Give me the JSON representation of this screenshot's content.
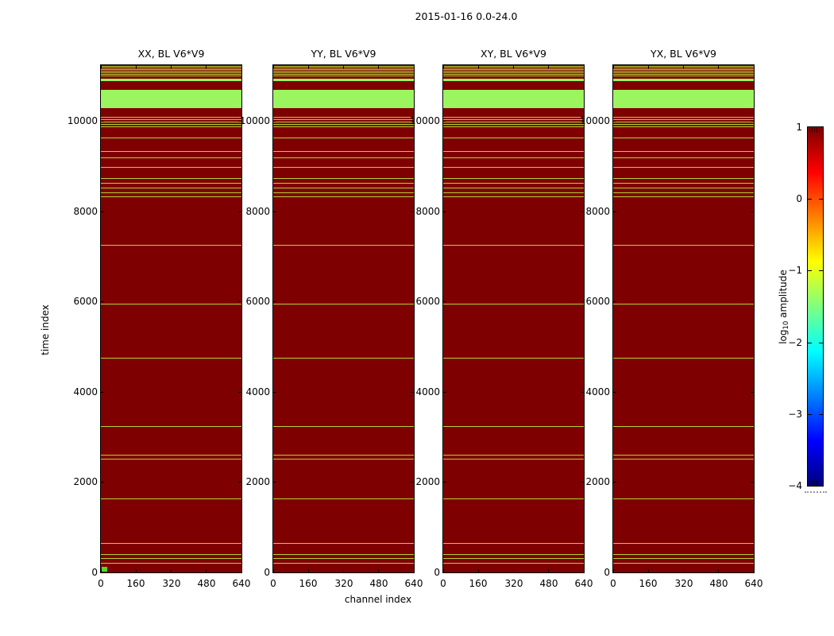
{
  "figure_title": "2015-01-16 0.0-24.0",
  "chart_data": {
    "type": "heatmap",
    "title": "2015-01-16 0.0-24.0",
    "xlabel": "channel index",
    "ylabel": "time index",
    "panels": [
      {
        "title": "XX, BL V6*V9"
      },
      {
        "title": "YY, BL V6*V9"
      },
      {
        "title": "XY, BL V6*V9"
      },
      {
        "title": "YX, BL V6*V9"
      }
    ],
    "x_range": [
      0,
      640
    ],
    "y_range": [
      0,
      11232
    ],
    "x_ticks": [
      0,
      160,
      320,
      480,
      640
    ],
    "x_tick_labels": [
      "0",
      "160",
      "320",
      "480",
      "640"
    ],
    "y_ticks": [
      0,
      2000,
      4000,
      6000,
      8000,
      10000
    ],
    "y_tick_labels": [
      "0",
      "2000",
      "4000",
      "6000",
      "8000",
      "10000"
    ],
    "colors": {
      "background": "#7f0000",
      "stripe": "#b2d23a",
      "band": "#9bf55f",
      "origin_marker": "#52d92e"
    },
    "stripes": [
      [
        11193,
        11211,
        "thin"
      ],
      [
        11158,
        11176,
        "thin"
      ],
      [
        11123,
        11141,
        "thin"
      ],
      [
        11087,
        11105,
        "thin"
      ],
      [
        11052,
        11070,
        "thin"
      ],
      [
        11017,
        11035,
        "thin"
      ],
      [
        10981,
        10999,
        "thin"
      ],
      [
        10877,
        10930,
        "band"
      ],
      [
        10278,
        10683,
        "band"
      ],
      [
        10076,
        10094,
        "thin"
      ],
      [
        10023,
        10041,
        "thin"
      ],
      [
        9970,
        9988,
        "thin"
      ],
      [
        9917,
        9935,
        "thin"
      ],
      [
        9865,
        9883,
        "thin"
      ],
      [
        9618,
        9636,
        "thin"
      ],
      [
        9319,
        9337,
        "thin"
      ],
      [
        9178,
        9196,
        "thin"
      ],
      [
        8967,
        8985,
        "thin"
      ],
      [
        8721,
        8739,
        "thin"
      ],
      [
        8615,
        8633,
        "thin"
      ],
      [
        8509,
        8527,
        "thin"
      ],
      [
        8404,
        8422,
        "thin"
      ],
      [
        8316,
        8334,
        "thin"
      ],
      [
        7242,
        7260,
        "thin"
      ],
      [
        5940,
        5958,
        "thin"
      ],
      [
        4743,
        4761,
        "thin"
      ],
      [
        3229,
        3247,
        "thin"
      ],
      [
        2587,
        2605,
        "thin"
      ],
      [
        2499,
        2517,
        "thin"
      ],
      [
        1628,
        1646,
        "thin"
      ],
      [
        642,
        660,
        "thin"
      ],
      [
        396,
        414,
        "thin"
      ],
      [
        308,
        326,
        "thin"
      ],
      [
        202,
        220,
        "thin"
      ]
    ],
    "origin_marker": {
      "panel": 0,
      "x0": 4,
      "x1": 28,
      "t0": 18,
      "t1": 120
    },
    "colorbar": {
      "label_prefix": "log",
      "label_sub": "10",
      "label_suffix": " amplitude",
      "range": [
        -4,
        1
      ],
      "ticks": [
        1,
        0,
        -1,
        -2,
        -3,
        -4
      ],
      "tick_labels": [
        "1",
        "0",
        "−1",
        "−2",
        "−3",
        "−4"
      ],
      "colormap": "jet",
      "stops": [
        [
          "#7f0000",
          0
        ],
        [
          "#ff0000",
          12.5
        ],
        [
          "#ffff00",
          37.5
        ],
        [
          "#00ffff",
          62.5
        ],
        [
          "#0000ff",
          87.5
        ],
        [
          "#00007f",
          100
        ]
      ]
    }
  }
}
